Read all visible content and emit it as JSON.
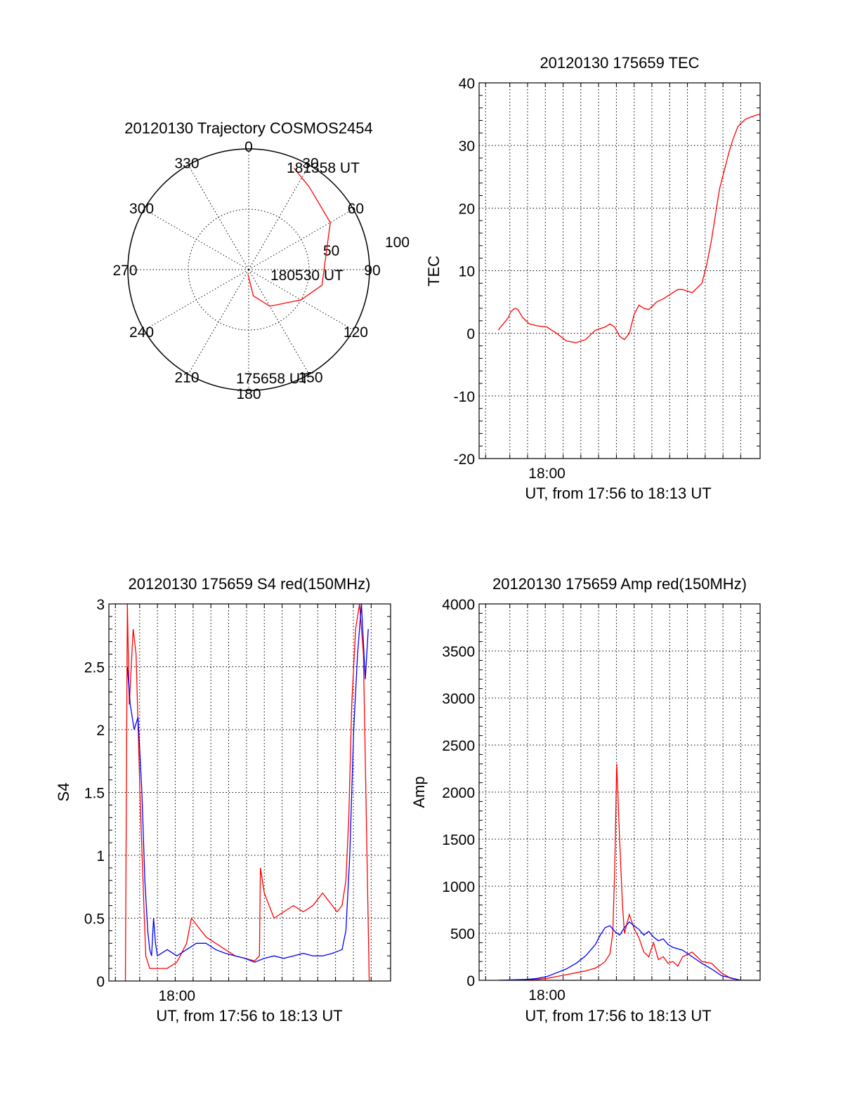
{
  "chart_data": [
    {
      "id": "trajectory",
      "type": "polar",
      "title": "20120130 Trajectory COSMOS2454",
      "azimuth_labels": [
        "0",
        "30",
        "60",
        "90",
        "120",
        "150",
        "180",
        "210",
        "240",
        "270",
        "300",
        "330"
      ],
      "radial_labels": [
        "50",
        "100"
      ],
      "radial_range": [
        0,
        100
      ],
      "line_color": "#ff0000",
      "track": [
        {
          "az": 188,
          "el": 4,
          "label": "175658 UT"
        },
        {
          "az": 170,
          "el": 22
        },
        {
          "az": 150,
          "el": 35
        },
        {
          "az": 120,
          "el": 50
        },
        {
          "az": 102,
          "el": 62
        },
        {
          "az": 60,
          "el": 78
        },
        {
          "az": 36,
          "el": 85
        },
        {
          "az": 24,
          "el": 92,
          "label": "181358 UT"
        }
      ],
      "track_label_mid": {
        "az": 100,
        "el": 52,
        "label": "180530 UT"
      }
    },
    {
      "id": "tec",
      "type": "line",
      "title": "20120130 175659 TEC",
      "ylabel": "TEC",
      "xlabel": "UT, from 17:56 to 18:13 UT",
      "xlim": [
        17.93,
        18.22
      ],
      "xticks": [
        {
          "x": 18.0,
          "label": "18:00"
        }
      ],
      "xminor": [
        17.9367,
        17.9617,
        17.98,
        17.9983,
        18.0167,
        18.035,
        18.0533,
        18.0717,
        18.09,
        18.1083,
        18.1267,
        18.145,
        18.1633,
        18.1817,
        18.2,
        18.22
      ],
      "ylim": [
        -20,
        40
      ],
      "yticks": [
        -20,
        -10,
        0,
        10,
        20,
        30,
        40
      ],
      "grid": true,
      "series": [
        {
          "color": "#ff0000",
          "x": [
            17.95,
            17.952,
            17.955,
            17.96,
            17.963,
            17.967,
            17.97,
            17.975,
            17.982,
            17.99,
            18.0,
            18.01,
            18.02,
            18.03,
            18.04,
            18.05,
            18.06,
            18.065,
            18.07,
            18.075,
            18.08,
            18.085,
            18.09,
            18.095,
            18.1,
            18.105,
            18.11,
            18.113,
            18.12,
            18.125,
            18.13,
            18.135,
            18.14,
            18.15,
            18.16,
            18.165,
            18.17,
            18.175,
            18.178,
            18.183,
            18.188,
            18.192,
            18.197,
            18.2,
            18.205,
            18.21,
            18.215,
            18.22
          ],
          "y": [
            0.5,
            1.0,
            1.5,
            2.5,
            3.5,
            4.0,
            3.8,
            2.5,
            1.5,
            1.2,
            1.0,
            0.0,
            -1.2,
            -1.5,
            -1.0,
            0.5,
            1.0,
            1.5,
            1.0,
            -0.5,
            -1.0,
            0.0,
            3.0,
            4.5,
            4.0,
            3.8,
            4.5,
            5.0,
            5.5,
            6.0,
            6.5,
            7.0,
            7.0,
            6.5,
            8.0,
            11.0,
            15.0,
            20.0,
            23.0,
            26.0,
            29.0,
            31.0,
            33.0,
            33.5,
            34.2,
            34.5,
            34.8,
            35.0
          ]
        }
      ]
    },
    {
      "id": "s4",
      "type": "line",
      "title": "20120130 175659 S4 red(150MHz)",
      "ylabel": "S4",
      "xlabel": "UT, from 17:56 to 18:13 UT",
      "xlim": [
        17.93,
        18.22
      ],
      "xticks": [
        {
          "x": 18.0,
          "label": "18:00"
        }
      ],
      "xminor": [
        17.9367,
        17.9617,
        17.98,
        17.9983,
        18.0167,
        18.035,
        18.0533,
        18.0717,
        18.09,
        18.1083,
        18.1267,
        18.145,
        18.1633,
        18.1817,
        18.2,
        18.22
      ],
      "ylim": [
        0,
        3
      ],
      "yticks": [
        0,
        0.5,
        1,
        1.5,
        2,
        2.5,
        3
      ],
      "ytick_labels": [
        "0",
        "0.5",
        "1",
        "1.5",
        "2",
        "2.5",
        "3"
      ],
      "grid": true,
      "series": [
        {
          "color": "#ff0000",
          "x": [
            17.947,
            17.949,
            17.951,
            17.955,
            17.958,
            17.962,
            17.966,
            17.968,
            17.972,
            17.98,
            17.99,
            18.0,
            18.01,
            18.015,
            18.02,
            18.03,
            18.04,
            18.05,
            18.06,
            18.07,
            18.08,
            18.085,
            18.086,
            18.09,
            18.1,
            18.11,
            18.12,
            18.13,
            18.14,
            18.15,
            18.16,
            18.165,
            18.17,
            18.174,
            18.177,
            18.18,
            18.184,
            18.188,
            18.192,
            18.198
          ],
          "y": [
            0.0,
            3.0,
            2.2,
            2.8,
            2.6,
            1.5,
            0.6,
            0.2,
            0.1,
            0.1,
            0.1,
            0.15,
            0.3,
            0.5,
            0.45,
            0.35,
            0.3,
            0.25,
            0.2,
            0.18,
            0.16,
            0.2,
            0.9,
            0.7,
            0.5,
            0.55,
            0.6,
            0.55,
            0.6,
            0.7,
            0.6,
            0.55,
            0.6,
            0.8,
            1.3,
            2.2,
            2.8,
            3.0,
            2.6,
            0.0
          ]
        },
        {
          "color": "#0000ff",
          "x": [
            17.949,
            17.952,
            17.956,
            17.96,
            17.964,
            17.967,
            17.97,
            17.972,
            17.974,
            17.976,
            17.978,
            17.98,
            17.99,
            18.0,
            18.01,
            18.02,
            18.03,
            18.04,
            18.05,
            18.06,
            18.07,
            18.08,
            18.09,
            18.1,
            18.11,
            18.12,
            18.13,
            18.14,
            18.15,
            18.16,
            18.17,
            18.174,
            18.178,
            18.182,
            18.186,
            18.19,
            18.194,
            18.197
          ],
          "y": [
            2.5,
            2.2,
            2.0,
            2.1,
            1.5,
            0.8,
            0.4,
            0.25,
            0.2,
            0.5,
            0.3,
            0.2,
            0.25,
            0.2,
            0.25,
            0.3,
            0.3,
            0.25,
            0.22,
            0.2,
            0.18,
            0.15,
            0.18,
            0.2,
            0.18,
            0.2,
            0.22,
            0.2,
            0.2,
            0.22,
            0.25,
            0.4,
            1.0,
            2.0,
            2.6,
            3.0,
            2.4,
            2.8
          ]
        }
      ]
    },
    {
      "id": "amp",
      "type": "line",
      "title": "20120130 175659 Amp red(150MHz)",
      "ylabel": "Amp",
      "xlabel": "UT, from 17:56 to 18:13 UT",
      "xlim": [
        17.93,
        18.22
      ],
      "xticks": [
        {
          "x": 18.0,
          "label": "18:00"
        }
      ],
      "xminor": [
        17.9367,
        17.9617,
        17.98,
        17.9983,
        18.0167,
        18.035,
        18.0533,
        18.0717,
        18.09,
        18.1083,
        18.1267,
        18.145,
        18.1633,
        18.1817,
        18.2,
        18.22
      ],
      "ylim": [
        0,
        4000
      ],
      "yticks": [
        0,
        500,
        1000,
        1500,
        2000,
        2500,
        3000,
        3500,
        4000
      ],
      "ytick_labels": [
        "0",
        "500",
        "1000",
        "1500",
        "2000",
        "2500",
        "3000",
        "3500",
        "4000"
      ],
      "grid": true,
      "series": [
        {
          "color": "#ff0000",
          "x": [
            17.95,
            17.98,
            17.99,
            18.0,
            18.01,
            18.02,
            18.03,
            18.04,
            18.05,
            18.055,
            18.06,
            18.065,
            18.068,
            18.07,
            18.072,
            18.075,
            18.078,
            18.08,
            18.085,
            18.09,
            18.095,
            18.1,
            18.105,
            18.11,
            18.115,
            18.12,
            18.125,
            18.13,
            18.135,
            18.14,
            18.15,
            18.16,
            18.17,
            18.18,
            18.19,
            18.2,
            18.22
          ],
          "y": [
            0,
            5,
            10,
            20,
            40,
            60,
            80,
            100,
            130,
            160,
            200,
            280,
            500,
            1200,
            2300,
            1500,
            800,
            500,
            700,
            550,
            450,
            300,
            250,
            400,
            220,
            250,
            180,
            200,
            150,
            250,
            300,
            200,
            180,
            80,
            20,
            0,
            0
          ]
        },
        {
          "color": "#0000ff",
          "x": [
            17.95,
            17.98,
            17.99,
            18.0,
            18.01,
            18.02,
            18.03,
            18.04,
            18.05,
            18.055,
            18.06,
            18.065,
            18.07,
            18.075,
            18.08,
            18.085,
            18.09,
            18.095,
            18.1,
            18.105,
            18.11,
            18.115,
            18.12,
            18.125,
            18.13,
            18.14,
            18.15,
            18.16,
            18.17,
            18.18,
            18.2,
            18.22
          ],
          "y": [
            0,
            10,
            20,
            40,
            80,
            120,
            180,
            260,
            380,
            480,
            560,
            580,
            520,
            480,
            560,
            620,
            580,
            540,
            480,
            520,
            460,
            420,
            440,
            380,
            350,
            320,
            250,
            180,
            120,
            50,
            0,
            0
          ]
        }
      ]
    }
  ]
}
